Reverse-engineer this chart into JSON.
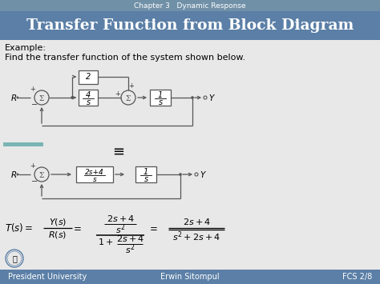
{
  "header_bg": "#5b7fa6",
  "header_chapter_text": "Chapter 3   Dynamic Response",
  "header_title_text": "Transfer Function from Block Diagram",
  "footer_left": "President University",
  "footer_center": "Erwin Sitompul",
  "footer_right": "FCS 2/8",
  "body_bg": "#e8e8e8",
  "teal_bar_color": "#7ab5b5",
  "example_line1": "Example:",
  "example_line2": "Find the transfer function of the system shown below."
}
